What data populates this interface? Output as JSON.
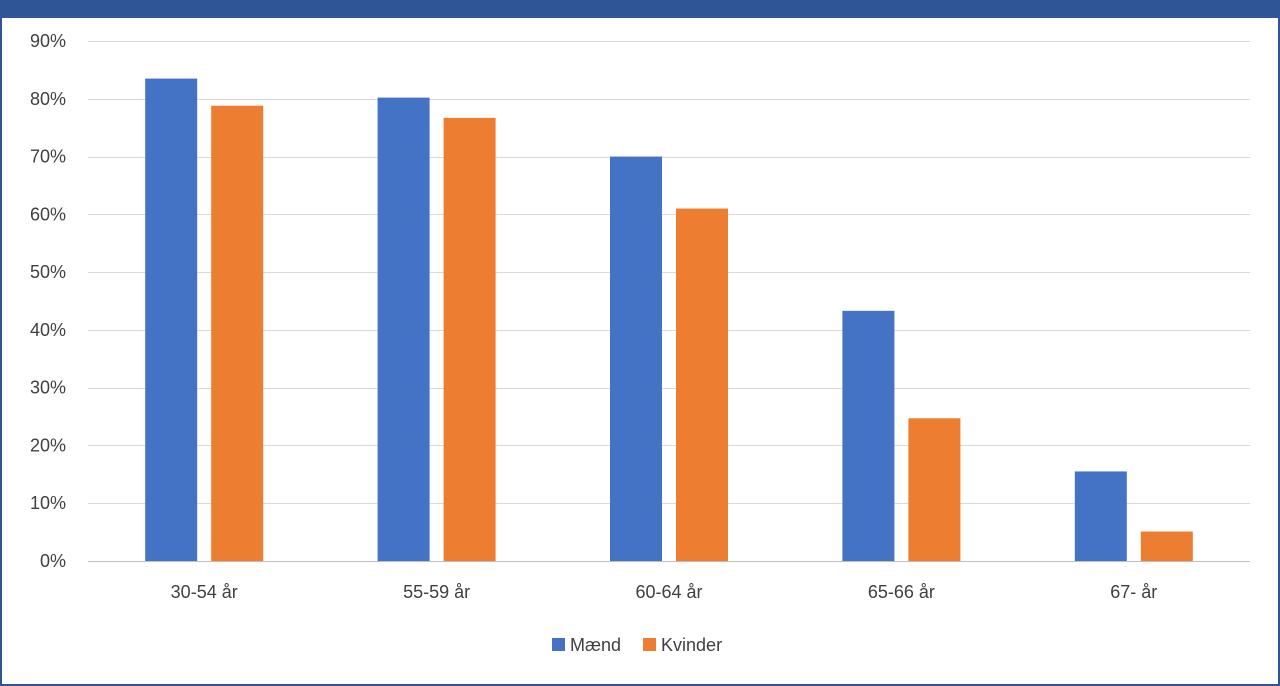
{
  "colors": {
    "frame": "#2F5597",
    "gridline": "#D9D9D9",
    "axis": "#BFBFBF",
    "text": "#404040"
  },
  "chart_data": {
    "type": "bar",
    "title": "",
    "xlabel": "",
    "ylabel": "",
    "categories": [
      "30-54 år",
      "55-59 år",
      "60-64 år",
      "65-66 år",
      "67- år"
    ],
    "series": [
      {
        "name": "Mænd",
        "color": "#4472C4",
        "values": [
          83.5,
          80.2,
          70.0,
          43.3,
          15.5
        ]
      },
      {
        "name": "Kvinder",
        "color": "#ED7D31",
        "values": [
          78.8,
          76.7,
          61.0,
          24.7,
          5.1
        ]
      }
    ],
    "ylim": [
      0,
      90
    ],
    "yticks": [
      0,
      10,
      20,
      30,
      40,
      50,
      60,
      70,
      80,
      90
    ],
    "ytick_labels": [
      "0%",
      "10%",
      "20%",
      "30%",
      "40%",
      "50%",
      "60%",
      "70%",
      "80%",
      "90%"
    ],
    "grid": true,
    "legend_position": "bottom"
  }
}
